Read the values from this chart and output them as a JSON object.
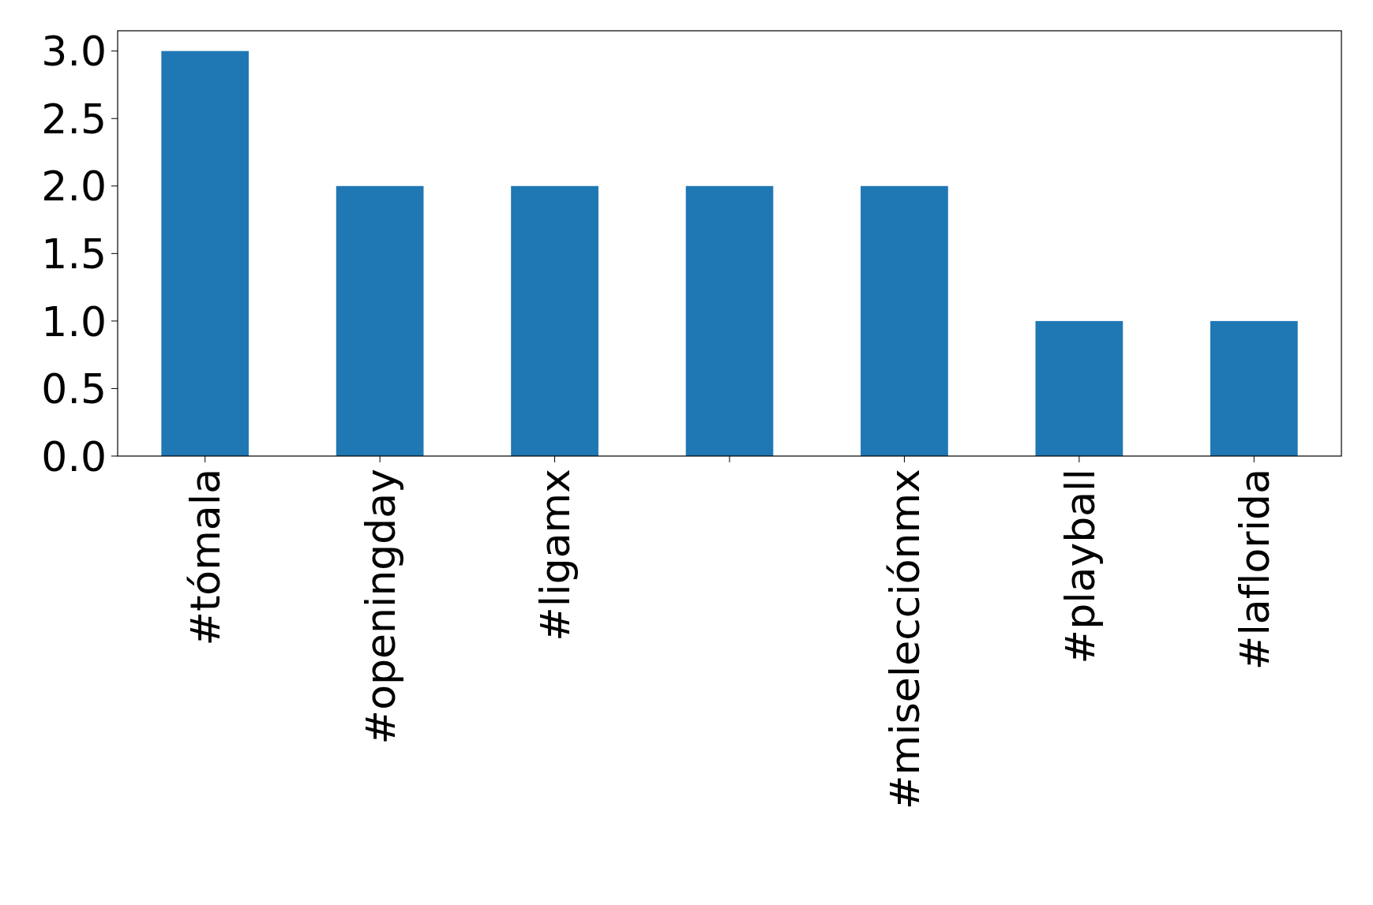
{
  "chart_data": {
    "type": "bar",
    "categories": [
      "#tómala",
      "#openingday",
      "#ligamx",
      null,
      "#miselecciónmx",
      "#playball",
      "#laflorida"
    ],
    "values": [
      3,
      2,
      2,
      2,
      2,
      1,
      1
    ],
    "color": "#1f77b4",
    "ylim": [
      0,
      3.15
    ],
    "yticks": [
      {
        "value": 0,
        "label": "0.0"
      },
      {
        "value": 0.5,
        "label": "0.5"
      },
      {
        "value": 1,
        "label": "1.0"
      },
      {
        "value": 1.5,
        "label": "1.5"
      },
      {
        "value": 2,
        "label": "2.0"
      },
      {
        "value": 2.5,
        "label": "2.5"
      },
      {
        "value": 3,
        "label": "3.0"
      }
    ],
    "grid": false
  }
}
